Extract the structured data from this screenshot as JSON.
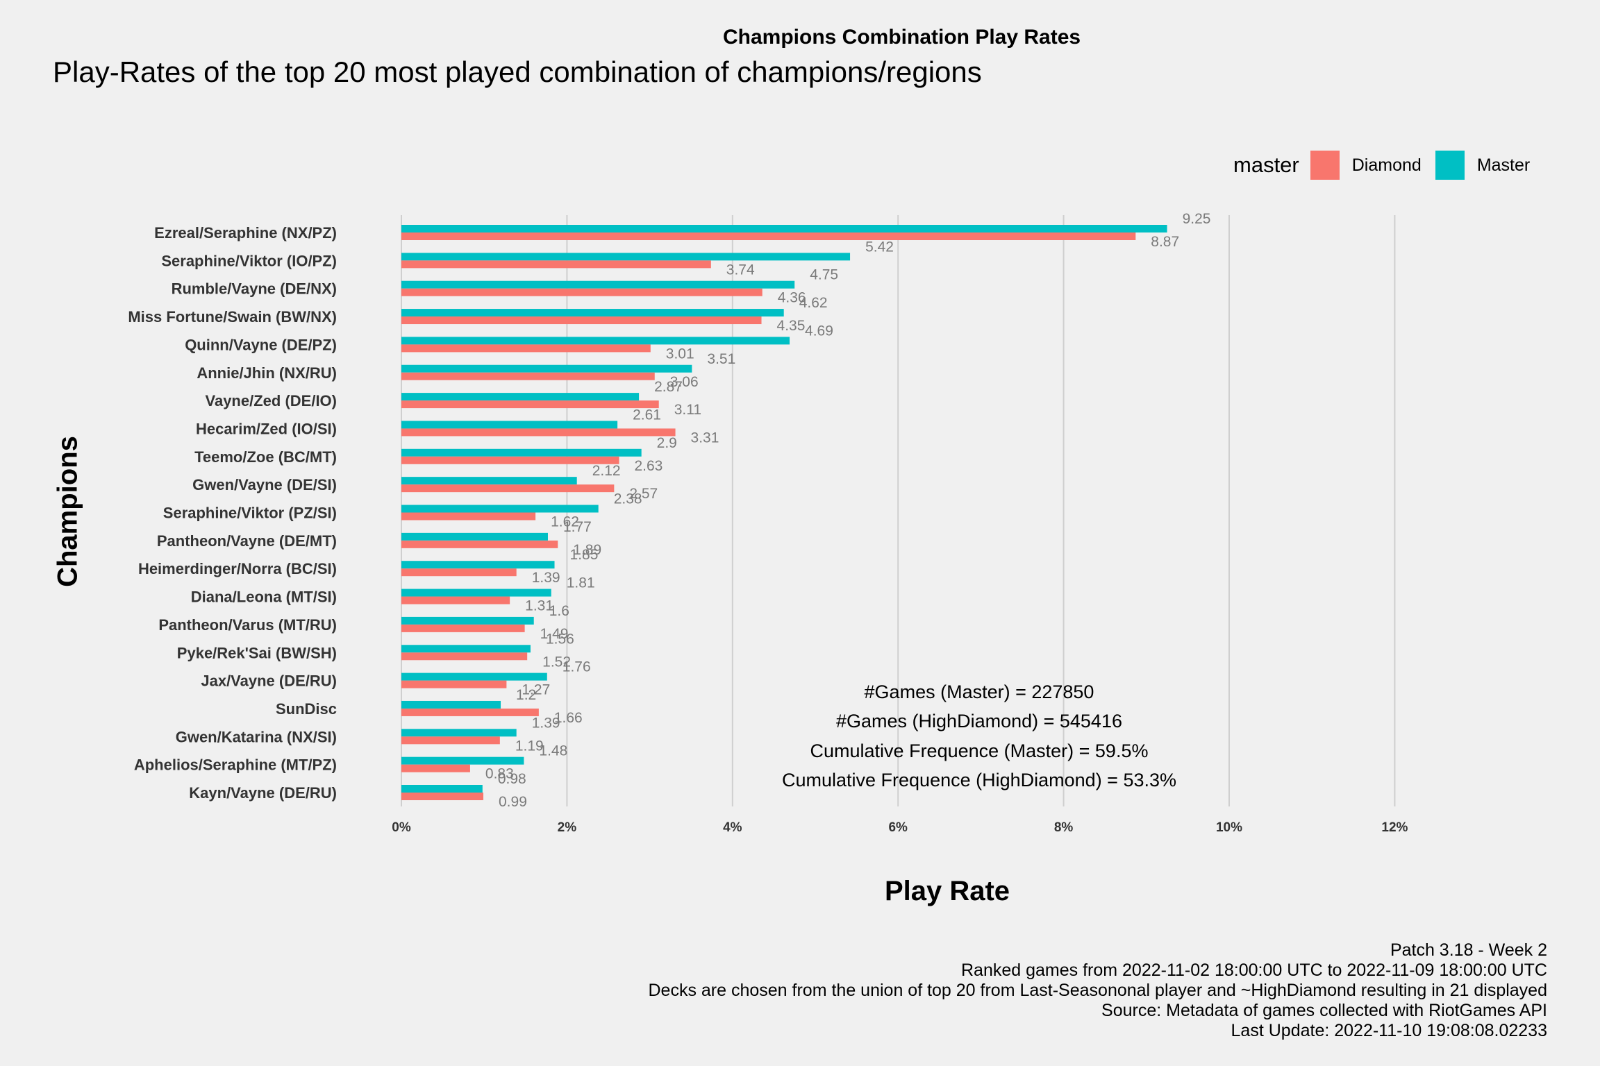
{
  "chart_data": {
    "type": "bar",
    "orientation": "horizontal",
    "title": "Champions Combination Play Rates",
    "subtitle": "Play-Rates of the top 20 most played combination of champions/regions",
    "xlabel": "Play Rate",
    "ylabel": "Champions",
    "xlim": [
      0,
      13
    ],
    "x_ticks": [
      "0%",
      "2%",
      "4%",
      "6%",
      "8%",
      "10%",
      "12%"
    ],
    "grid": "vertical major gridlines",
    "legend": {
      "title": "master",
      "placement": "top-right",
      "entries": [
        {
          "name": "Diamond",
          "color": "#F8766D"
        },
        {
          "name": "Master",
          "color": "#00BFC4"
        }
      ]
    },
    "categories": [
      "Ezreal/Seraphine (NX/PZ)",
      "Seraphine/Viktor (IO/PZ)",
      "Rumble/Vayne (DE/NX)",
      "Miss Fortune/Swain (BW/NX)",
      "Quinn/Vayne (DE/PZ)",
      "Annie/Jhin (NX/RU)",
      "Vayne/Zed (DE/IO)",
      "Hecarim/Zed (IO/SI)",
      "Teemo/Zoe (BC/MT)",
      "Gwen/Vayne (DE/SI)",
      "Seraphine/Viktor (PZ/SI)",
      "Pantheon/Vayne (DE/MT)",
      "Heimerdinger/Norra (BC/SI)",
      "Diana/Leona (MT/SI)",
      "Pantheon/Varus (MT/RU)",
      "Pyke/Rek'Sai (BW/SH)",
      "Jax/Vayne (DE/RU)",
      "SunDisc",
      "Gwen/Katarina (NX/SI)",
      "Aphelios/Seraphine (MT/PZ)",
      "Kayn/Vayne (DE/RU)"
    ],
    "series": [
      {
        "name": "Master",
        "color": "#00BFC4",
        "values": [
          9.25,
          5.42,
          4.75,
          4.62,
          4.69,
          3.51,
          2.87,
          2.61,
          2.9,
          2.12,
          2.38,
          1.77,
          1.85,
          1.81,
          1.6,
          1.56,
          1.76,
          1.2,
          1.39,
          1.48,
          0.98
        ],
        "labels": [
          "9.25",
          "5.42",
          "4.75",
          "4.62",
          "4.69",
          "3.51",
          "2.87",
          "2.61",
          "2.9",
          "2.12",
          "2.38",
          "1.77",
          "1.85",
          "1.81",
          "1.6",
          "1.56",
          "1.76",
          "1.2",
          "1.39",
          "1.48",
          "0.98"
        ]
      },
      {
        "name": "Diamond",
        "color": "#F8766D",
        "values": [
          8.87,
          3.74,
          4.36,
          4.35,
          3.01,
          3.06,
          3.11,
          3.31,
          2.63,
          2.57,
          1.62,
          1.89,
          1.39,
          1.31,
          1.49,
          1.52,
          1.27,
          1.66,
          1.19,
          0.83,
          0.99
        ],
        "labels": [
          "8.87",
          "3.74",
          "4.36",
          "4.35",
          "3.01",
          "3.06",
          "3.11",
          "3.31",
          "2.63",
          "2.57",
          "1.62",
          "1.89",
          "1.39",
          "1.31",
          "1.49",
          "1.52",
          "1.27",
          "1.66",
          "1.19",
          "0.83",
          "0.99"
        ]
      }
    ],
    "annotations": [
      "#Games (Master) = 227850",
      "#Games (HighDiamond) = 545416",
      "Cumulative Frequence (Master) = 59.5%",
      "Cumulative Frequence (HighDiamond) = 53.3%"
    ],
    "caption": [
      "Patch 3.18 - Week 2",
      "Ranked games from 2022-11-02 18:00:00 UTC to 2022-11-09 18:00:00 UTC",
      "Decks are chosen from the union of top 20 from Last-Seasononal player and ~HighDiamond resulting in 21 displayed",
      "Source: Metadata of games collected with RiotGames API",
      "Last Update: 2022-11-10 19:08:08.02233"
    ]
  }
}
